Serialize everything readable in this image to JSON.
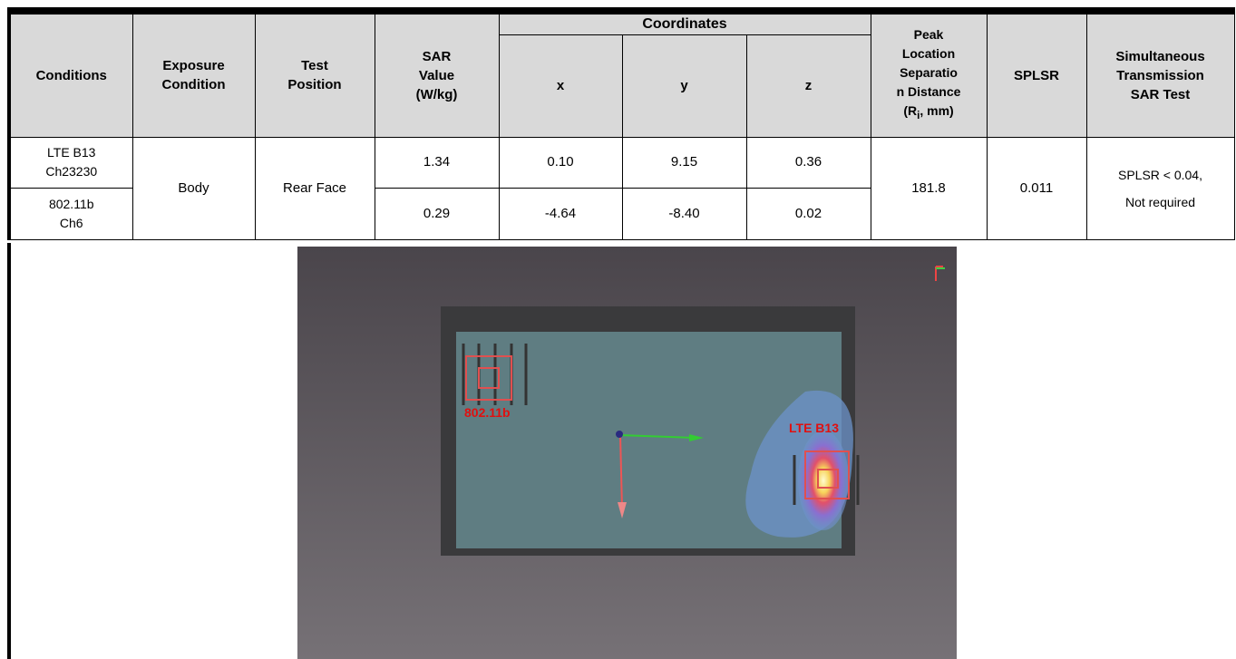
{
  "table": {
    "header": {
      "conditions": "Conditions",
      "exposure": [
        "Exposure",
        "Condition"
      ],
      "test_position": [
        "Test",
        "Position"
      ],
      "sar": [
        "SAR",
        "Value",
        "(W/kg)"
      ],
      "coordinates": "Coordinates",
      "x": "x",
      "y": "y",
      "z": "z",
      "peak": [
        "Peak",
        "Location",
        "Separatio",
        "n Distance"
      ],
      "peak_unit": [
        "(R",
        "i",
        ", mm)"
      ],
      "splsr": "SPLSR",
      "simultaneous": [
        "Simultaneous",
        "Transmission",
        "SAR Test"
      ]
    },
    "rows": [
      {
        "condition": [
          "LTE B13",
          "Ch23230"
        ],
        "sar": "1.34",
        "x": "0.10",
        "y": "9.15",
        "z": "0.36"
      },
      {
        "condition": [
          "802.11b",
          "Ch6"
        ],
        "sar": "0.29",
        "x": "-4.64",
        "y": "-8.40",
        "z": "0.02"
      }
    ],
    "exposure": "Body",
    "test_position": "Rear Face",
    "separation": "181.8",
    "splsr": "0.011",
    "simultaneous": [
      "SPLSR < 0.04,",
      "Not required"
    ]
  },
  "image": {
    "labels": [
      "802.11b",
      "LTE B13"
    ]
  }
}
